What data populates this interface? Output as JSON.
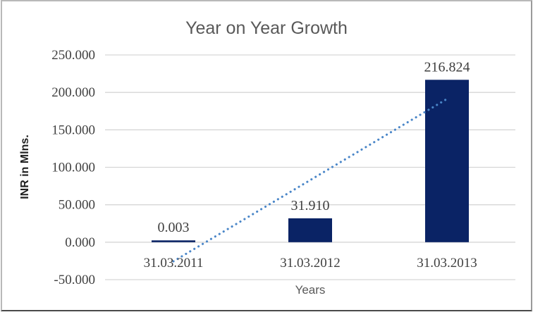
{
  "chart_data": {
    "type": "bar",
    "title": "Year on Year Growth",
    "xlabel": "Years",
    "ylabel": "INR in Mlns.",
    "categories": [
      "31.03.2011",
      "31.03.2012",
      "31.03.2013"
    ],
    "values": [
      0.003,
      31.91,
      216.824
    ],
    "data_labels": [
      "0.003",
      "31.910",
      "216.824"
    ],
    "yticks": [
      -50,
      0,
      50,
      100,
      150,
      200,
      250
    ],
    "ytick_labels": [
      "-50.000",
      "0.000",
      "50.000",
      "100.000",
      "150.000",
      "200.000",
      "250.000"
    ],
    "ylim": [
      -50,
      250
    ],
    "grid": true,
    "legend": "none",
    "bar_color": "#0a2365",
    "gridline_color": "#d6d6d6",
    "trendline": {
      "type": "linear",
      "style": "dotted",
      "color": "#4a86c8",
      "start_value": -25.5,
      "end_value": 191.3
    }
  }
}
